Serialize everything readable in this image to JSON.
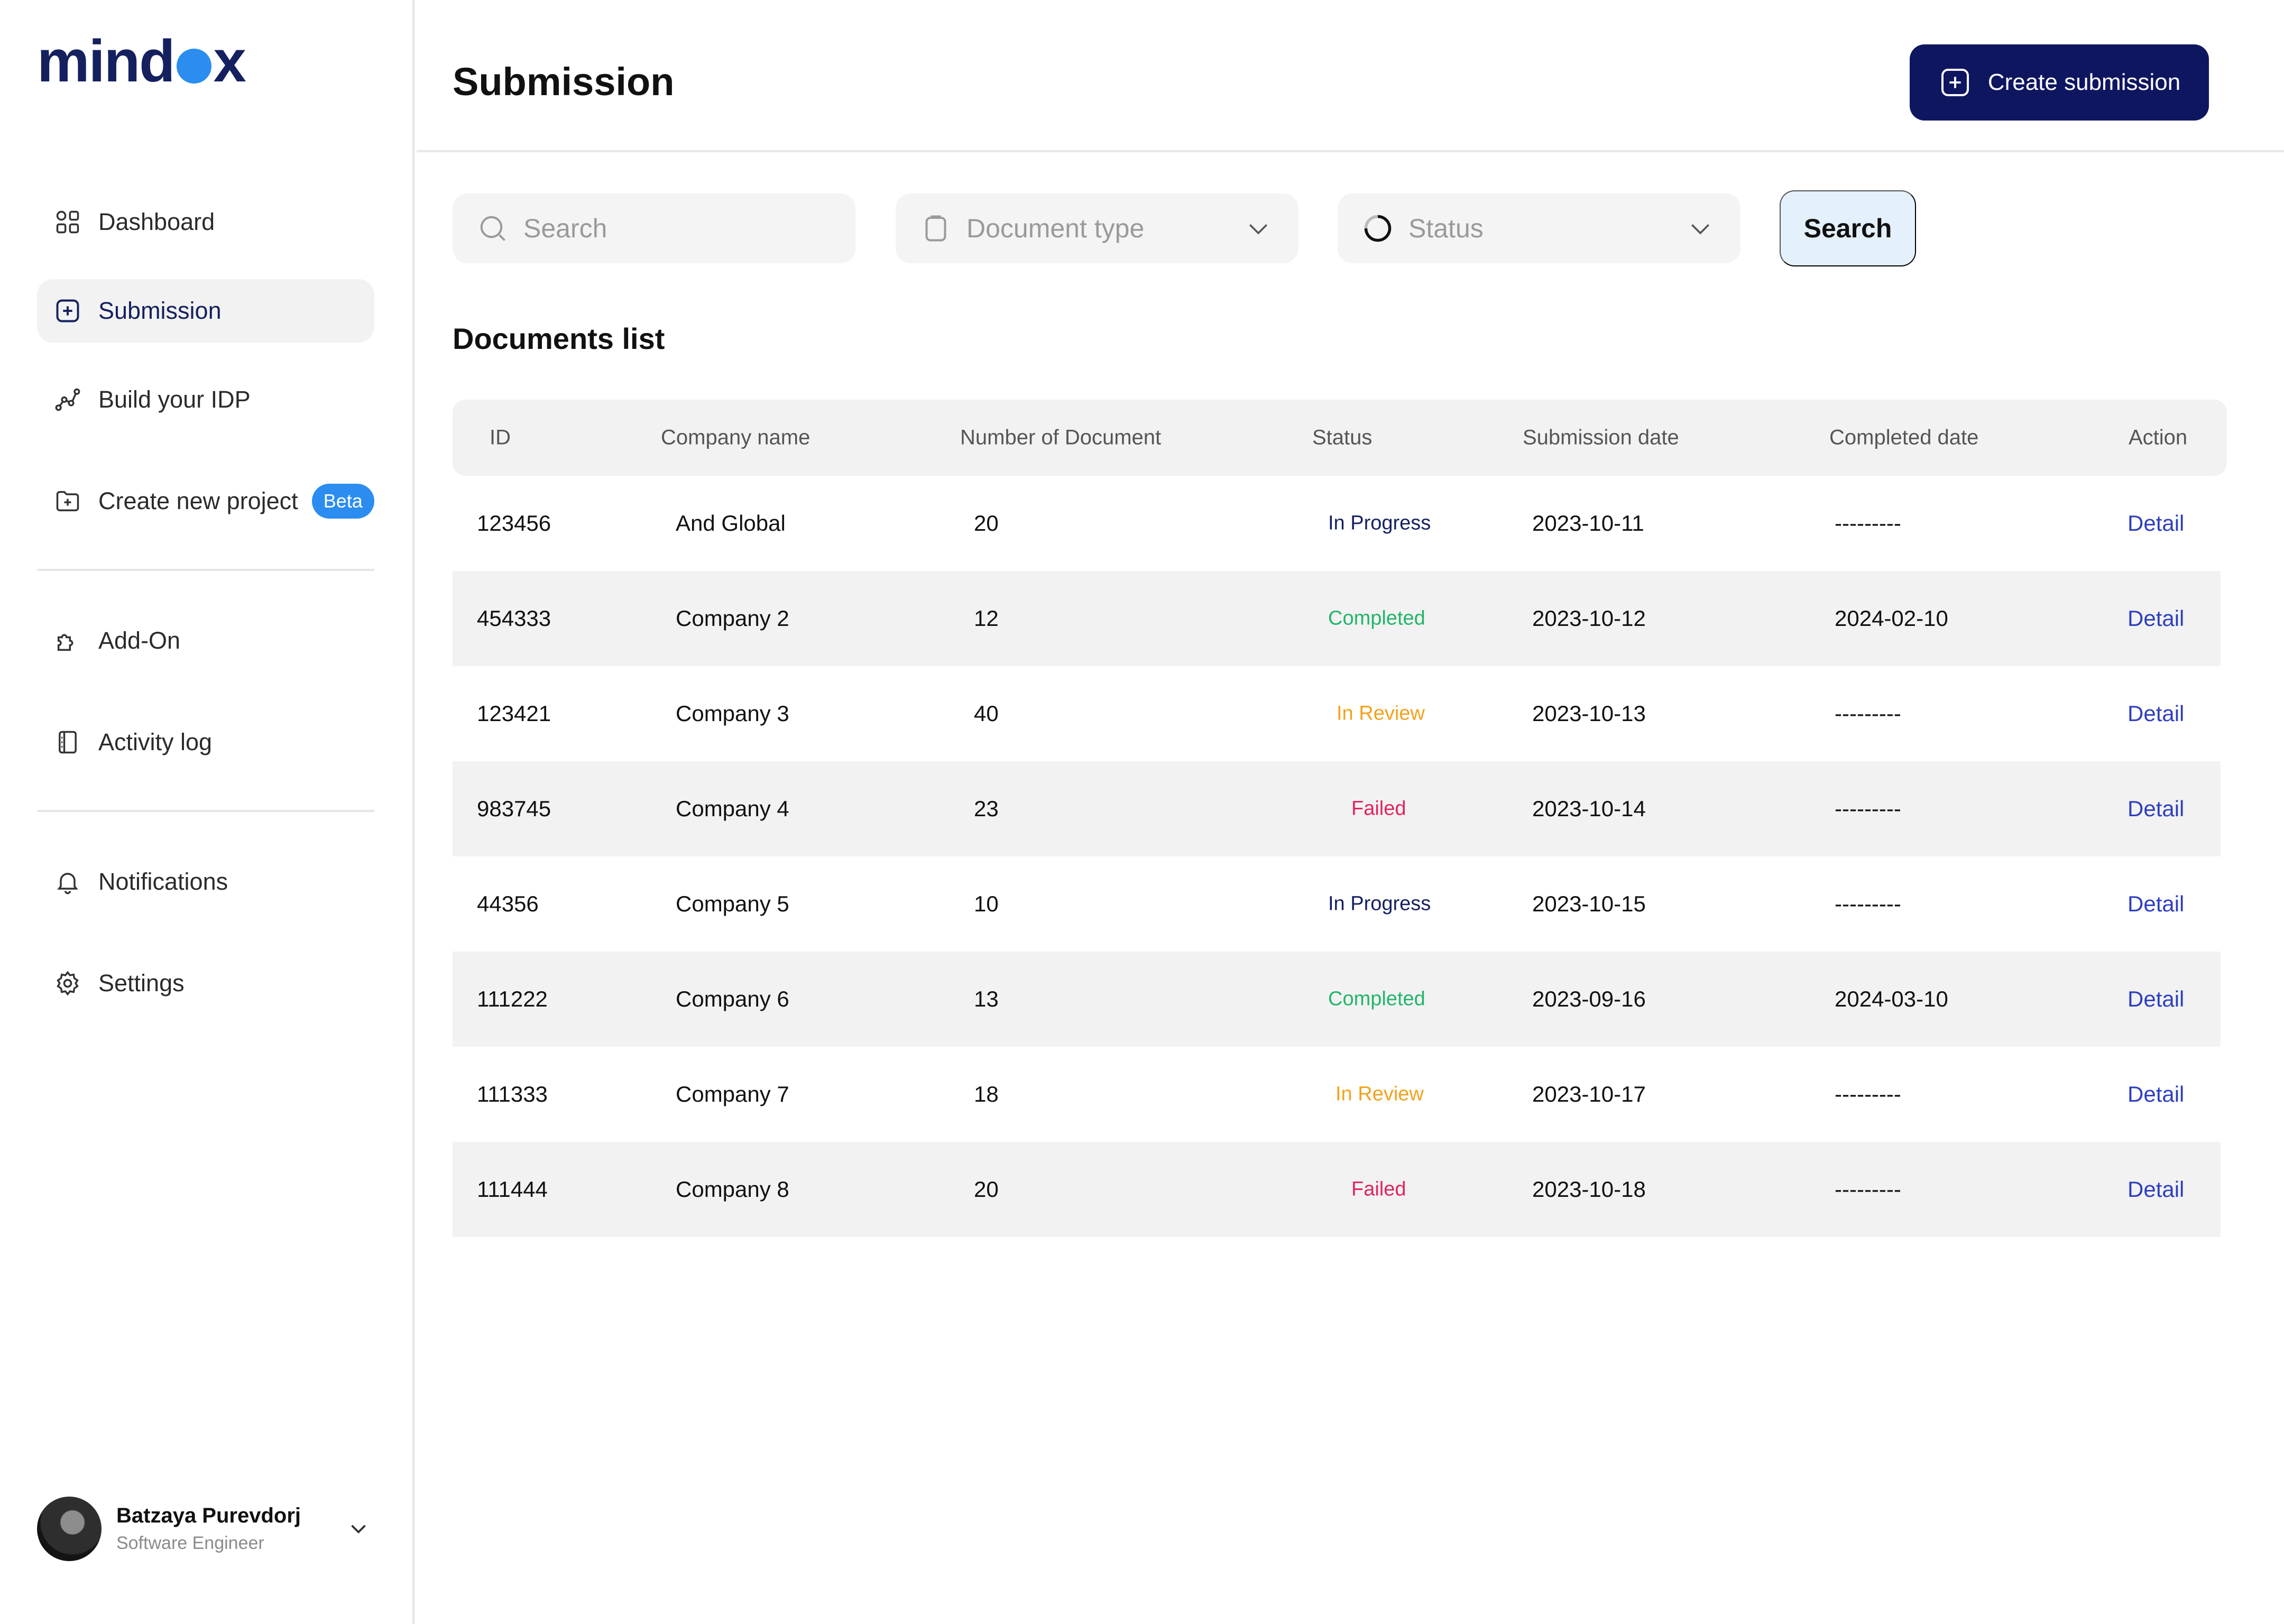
{
  "brand": {
    "logo_left": "mind",
    "logo_right": "x"
  },
  "sidebar": {
    "items": [
      {
        "label": "Dashboard",
        "icon": "grid-icon"
      },
      {
        "label": "Submission",
        "icon": "plus-square-icon",
        "active": true
      },
      {
        "label": "Build your IDP",
        "icon": "graph-icon"
      },
      {
        "label": "Create new project",
        "icon": "folder-plus-icon",
        "badge": "Beta"
      },
      {
        "label": "Add-On",
        "icon": "puzzle-icon"
      },
      {
        "label": "Activity log",
        "icon": "log-icon"
      },
      {
        "label": "Notifications",
        "icon": "bell-icon"
      },
      {
        "label": "Settings",
        "icon": "gear-icon"
      }
    ],
    "user": {
      "name": "Batzaya Purevdorj",
      "role": "Software Engineer"
    }
  },
  "header": {
    "title": "Submission",
    "create_label": "Create submission"
  },
  "filters": {
    "search_placeholder": "Search",
    "doc_type_placeholder": "Document type",
    "status_placeholder": "Status",
    "search_button": "Search"
  },
  "documents": {
    "title": "Documents list",
    "columns": [
      "ID",
      "Company name",
      "Number of Document",
      "Status",
      "Submission date",
      "Completed date",
      "Action"
    ],
    "rows": [
      {
        "id": "123456",
        "company": "And Global",
        "count": "20",
        "status": "In Progress",
        "submitted": "2023-10-11",
        "completed": "---------",
        "action": "Detail"
      },
      {
        "id": "454333",
        "company": "Company 2",
        "count": "12",
        "status": "Completed",
        "submitted": "2023-10-12",
        "completed": "2024-02-10",
        "action": "Detail"
      },
      {
        "id": "123421",
        "company": "Company 3",
        "count": "40",
        "status": "In Review",
        "submitted": "2023-10-13",
        "completed": "---------",
        "action": "Detail"
      },
      {
        "id": "983745",
        "company": "Company 4",
        "count": "23",
        "status": "Failed",
        "submitted": "2023-10-14",
        "completed": "---------",
        "action": "Detail"
      },
      {
        "id": "44356",
        "company": "Company 5",
        "count": "10",
        "status": "In Progress",
        "submitted": "2023-10-15",
        "completed": "---------",
        "action": "Detail"
      },
      {
        "id": "111222",
        "company": "Company 6",
        "count": "13",
        "status": "Completed",
        "submitted": "2023-09-16",
        "completed": "2024-03-10",
        "action": "Detail"
      },
      {
        "id": "111333",
        "company": "Company 7",
        "count": "18",
        "status": "In Review",
        "submitted": "2023-10-17",
        "completed": "---------",
        "action": "Detail"
      },
      {
        "id": "111444",
        "company": "Company 8",
        "count": "20",
        "status": "Failed",
        "submitted": "2023-10-18",
        "completed": "---------",
        "action": "Detail"
      }
    ]
  },
  "colors": {
    "brand_navy": "#0f1660",
    "accent_blue": "#2b8df0",
    "completed": "#22b56a",
    "in_review": "#f3a21b",
    "failed": "#e0245e"
  }
}
